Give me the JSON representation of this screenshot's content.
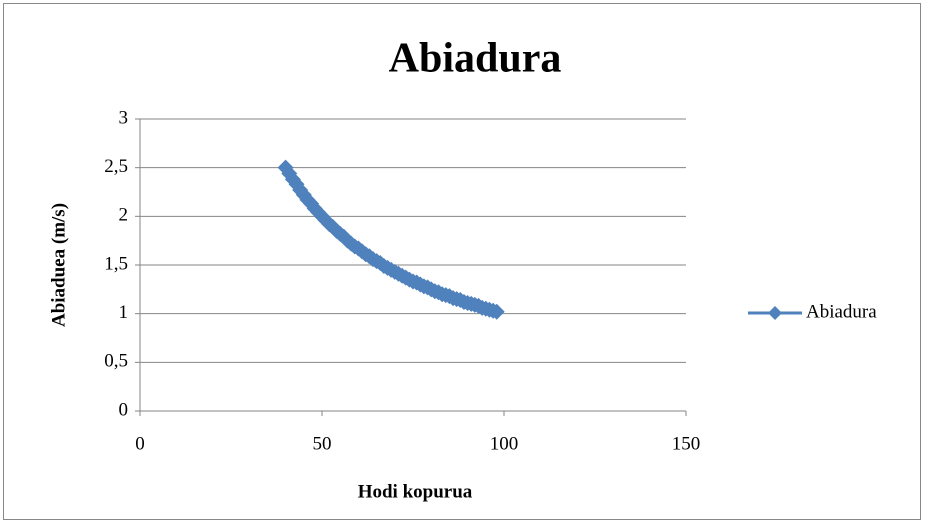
{
  "chart_data": {
    "type": "scatter",
    "title": "Abiadura",
    "xlabel": "Hodi kopurua",
    "ylabel": "Abiaduea (m/s)",
    "legend": "right",
    "grid": true,
    "xlim": [
      0,
      150
    ],
    "xticks": [
      0,
      50,
      100,
      150
    ],
    "ylim": [
      0,
      3
    ],
    "yticks": [
      0,
      {
        "value": 0.5,
        "label": "0,5"
      },
      1,
      {
        "value": 1.5,
        "label": "1,5"
      },
      2,
      {
        "value": 2.5,
        "label": "2,5"
      },
      3
    ],
    "series": [
      {
        "name": "Abiadura",
        "color": "#4f81bd",
        "x": [
          40,
          41,
          42,
          43,
          44,
          45,
          46,
          47,
          48,
          49,
          50,
          51,
          52,
          53,
          54,
          55,
          56,
          57,
          58,
          59,
          60,
          61,
          62,
          63,
          64,
          65,
          66,
          67,
          68,
          69,
          70,
          71,
          72,
          73,
          74,
          75,
          76,
          77,
          78,
          79,
          80,
          81,
          82,
          83,
          84,
          85,
          86,
          87,
          88,
          89,
          90,
          91,
          92,
          93,
          94,
          95,
          96,
          97,
          98
        ],
        "values": [
          2.5,
          2.44,
          2.38,
          2.33,
          2.27,
          2.22,
          2.17,
          2.13,
          2.08,
          2.04,
          2,
          1.96,
          1.92,
          1.89,
          1.85,
          1.82,
          1.79,
          1.75,
          1.72,
          1.69,
          1.67,
          1.64,
          1.61,
          1.59,
          1.56,
          1.54,
          1.52,
          1.49,
          1.47,
          1.45,
          1.43,
          1.41,
          1.39,
          1.37,
          1.35,
          1.33,
          1.32,
          1.3,
          1.28,
          1.27,
          1.25,
          1.23,
          1.22,
          1.2,
          1.19,
          1.18,
          1.16,
          1.15,
          1.14,
          1.12,
          1.11,
          1.1,
          1.09,
          1.08,
          1.06,
          1.05,
          1.04,
          1.03,
          1.02
        ]
      }
    ]
  }
}
